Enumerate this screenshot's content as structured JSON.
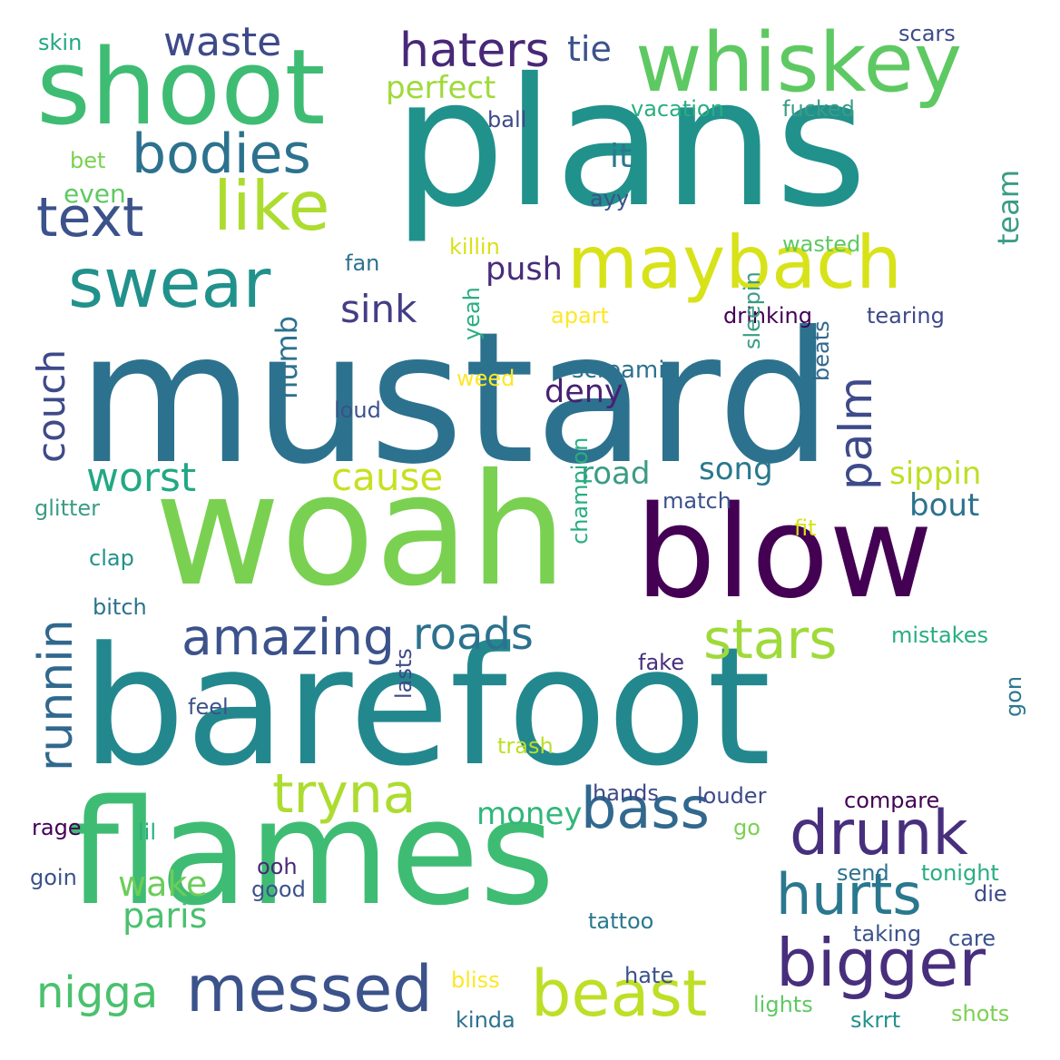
{
  "colors": {
    "background": "#ffffff",
    "palette": [
      "#440154",
      "#472f7d",
      "#3b528b",
      "#2c728e",
      "#21918c",
      "#28ae80",
      "#5ec962",
      "#addc30",
      "#fde725"
    ]
  },
  "words": [
    {
      "text": "mustard",
      "color": "#2c728e"
    },
    {
      "text": "plans",
      "color": "#21918c"
    },
    {
      "text": "woah",
      "color": "#7ad151"
    },
    {
      "text": "barefoot",
      "color": "#23888e"
    },
    {
      "text": "flames",
      "color": "#3fbc73"
    },
    {
      "text": "blow",
      "color": "#440154"
    },
    {
      "text": "shoot",
      "color": "#3fbc73"
    },
    {
      "text": "whiskey",
      "color": "#5ec962"
    },
    {
      "text": "maybach",
      "color": "#d8e219"
    },
    {
      "text": "swear",
      "color": "#21918c"
    },
    {
      "text": "like",
      "color": "#addc30"
    },
    {
      "text": "bodies",
      "color": "#2c728e"
    },
    {
      "text": "text",
      "color": "#3b528b"
    },
    {
      "text": "haters",
      "color": "#482878"
    },
    {
      "text": "waste",
      "color": "#3e4a89"
    },
    {
      "text": "tie",
      "color": "#3b528b"
    },
    {
      "text": "perfect",
      "color": "#9fda3a"
    },
    {
      "text": "messed",
      "color": "#3b528b"
    },
    {
      "text": "beast",
      "color": "#bddf26"
    },
    {
      "text": "bigger",
      "color": "#472f7d"
    },
    {
      "text": "drunk",
      "color": "#472f7d"
    },
    {
      "text": "hurts",
      "color": "#2a788e"
    },
    {
      "text": "bass",
      "color": "#31688e"
    },
    {
      "text": "tryna",
      "color": "#addc30"
    },
    {
      "text": "stars",
      "color": "#9fda3a"
    },
    {
      "text": "amazing",
      "color": "#3b528b"
    },
    {
      "text": "roads",
      "color": "#2c728e"
    },
    {
      "text": "runnin",
      "color": "#31688e"
    },
    {
      "text": "palm",
      "color": "#3e4a89"
    },
    {
      "text": "nigga",
      "color": "#4ac16d"
    },
    {
      "text": "couch",
      "color": "#3e4a89"
    },
    {
      "text": "worst",
      "color": "#22a884"
    },
    {
      "text": "cause",
      "color": "#c8e020"
    },
    {
      "text": "sink",
      "color": "#433e85"
    },
    {
      "text": "push",
      "color": "#472c7a"
    },
    {
      "text": "deny",
      "color": "#482173"
    },
    {
      "text": "numb",
      "color": "#2c728e"
    },
    {
      "text": "screamin",
      "color": "#2c728e"
    },
    {
      "text": "road",
      "color": "#3b9c85"
    },
    {
      "text": "song",
      "color": "#2a788e"
    },
    {
      "text": "sippin",
      "color": "#bddf26"
    },
    {
      "text": "bout",
      "color": "#2c728e"
    },
    {
      "text": "money",
      "color": "#32b67a"
    },
    {
      "text": "wake",
      "color": "#6ccd5a"
    },
    {
      "text": "paris",
      "color": "#4ac16d"
    },
    {
      "text": "team",
      "color": "#3b9c85"
    },
    {
      "text": "it",
      "color": "#2a788e"
    },
    {
      "text": "even",
      "color": "#5ec962"
    },
    {
      "text": "skin",
      "color": "#22a884"
    },
    {
      "text": "scars",
      "color": "#3e4a89"
    },
    {
      "text": "vacation",
      "color": "#28ae80"
    },
    {
      "text": "fucked",
      "color": "#3b9c85"
    },
    {
      "text": "ball",
      "color": "#3e4a89"
    },
    {
      "text": "bet",
      "color": "#7ad151"
    },
    {
      "text": "ayy",
      "color": "#3b528b"
    },
    {
      "text": "killin",
      "color": "#d8e219"
    },
    {
      "text": "wasted",
      "color": "#5ec962"
    },
    {
      "text": "fan",
      "color": "#2c728e"
    },
    {
      "text": "apart",
      "color": "#fde725"
    },
    {
      "text": "drinking",
      "color": "#440154"
    },
    {
      "text": "tearing",
      "color": "#3e4a89"
    },
    {
      "text": "yeah",
      "color": "#28ae80"
    },
    {
      "text": "weed",
      "color": "#fde725"
    },
    {
      "text": "loud",
      "color": "#3b528b"
    },
    {
      "text": "sleepin",
      "color": "#3b9c85"
    },
    {
      "text": "beats",
      "color": "#31688e"
    },
    {
      "text": "glitter",
      "color": "#3b9c85"
    },
    {
      "text": "match",
      "color": "#3b528b"
    },
    {
      "text": "clap",
      "color": "#21918c"
    },
    {
      "text": "fit",
      "color": "#d8e219"
    },
    {
      "text": "champion",
      "color": "#28ae80"
    },
    {
      "text": "bitch",
      "color": "#2c728e"
    },
    {
      "text": "mistakes",
      "color": "#28ae80"
    },
    {
      "text": "fake",
      "color": "#472f7d"
    },
    {
      "text": "feel",
      "color": "#3b528b"
    },
    {
      "text": "lasts",
      "color": "#3e4a89"
    },
    {
      "text": "trash",
      "color": "#bddf26"
    },
    {
      "text": "gon",
      "color": "#2a788e"
    },
    {
      "text": "hands",
      "color": "#3e4a89"
    },
    {
      "text": "louder",
      "color": "#3e4a89"
    },
    {
      "text": "compare",
      "color": "#440154"
    },
    {
      "text": "rage",
      "color": "#440154"
    },
    {
      "text": "lil",
      "color": "#28ae80"
    },
    {
      "text": "go",
      "color": "#7ad151"
    },
    {
      "text": "goin",
      "color": "#3b528b"
    },
    {
      "text": "ooh",
      "color": "#482878"
    },
    {
      "text": "good",
      "color": "#3b528b"
    },
    {
      "text": "send",
      "color": "#2c728e"
    },
    {
      "text": "tonight",
      "color": "#28ae80"
    },
    {
      "text": "die",
      "color": "#3e4a89"
    },
    {
      "text": "tattoo",
      "color": "#2a788e"
    },
    {
      "text": "taking",
      "color": "#3b528b"
    },
    {
      "text": "care",
      "color": "#3b528b"
    },
    {
      "text": "bliss",
      "color": "#fde725"
    },
    {
      "text": "hate",
      "color": "#3b528b"
    },
    {
      "text": "lights",
      "color": "#5ec962"
    },
    {
      "text": "kinda",
      "color": "#2c728e"
    },
    {
      "text": "skrrt",
      "color": "#21918c"
    },
    {
      "text": "shots",
      "color": "#7ad151"
    }
  ]
}
